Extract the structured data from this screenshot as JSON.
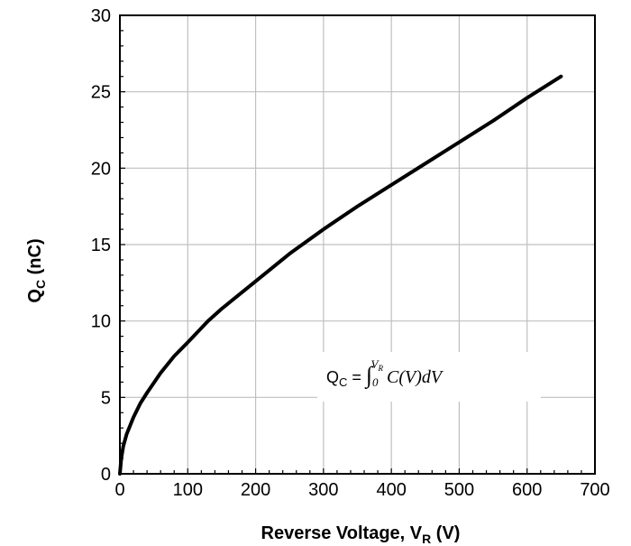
{
  "chart_data": {
    "type": "line",
    "xlabel": {
      "main": "Reverse Voltage, V",
      "sub": "R",
      "unit": " (V)"
    },
    "ylabel": {
      "main": "Q",
      "sub": "C",
      "unit": " (nC)"
    },
    "xlim": [
      0,
      700
    ],
    "ylim": [
      0,
      30
    ],
    "xticks": [
      0,
      100,
      200,
      300,
      400,
      500,
      600,
      700
    ],
    "yticks": [
      0,
      5,
      10,
      15,
      20,
      25,
      30
    ],
    "grid": true,
    "legend": "none",
    "line_color": "#000000",
    "grid_color": "#bfbfbf",
    "series": [
      {
        "x": [
          0,
          2,
          5,
          10,
          20,
          30,
          40,
          60,
          80,
          100,
          130,
          150,
          200,
          250,
          300,
          350,
          400,
          450,
          500,
          550,
          600,
          650
        ],
        "y": [
          0,
          1.0,
          1.8,
          2.6,
          3.7,
          4.6,
          5.3,
          6.6,
          7.7,
          8.6,
          10.0,
          10.8,
          12.6,
          14.4,
          16.0,
          17.5,
          18.9,
          20.3,
          21.7,
          23.1,
          24.6,
          26.0
        ]
      }
    ],
    "annotation": {
      "lhs_main": "Q",
      "lhs_sub": "C",
      "equals": " = ",
      "integral": "∫",
      "lower": "0",
      "upper_main": "V",
      "upper_sub": "R",
      "body": "C(V)dV"
    }
  }
}
